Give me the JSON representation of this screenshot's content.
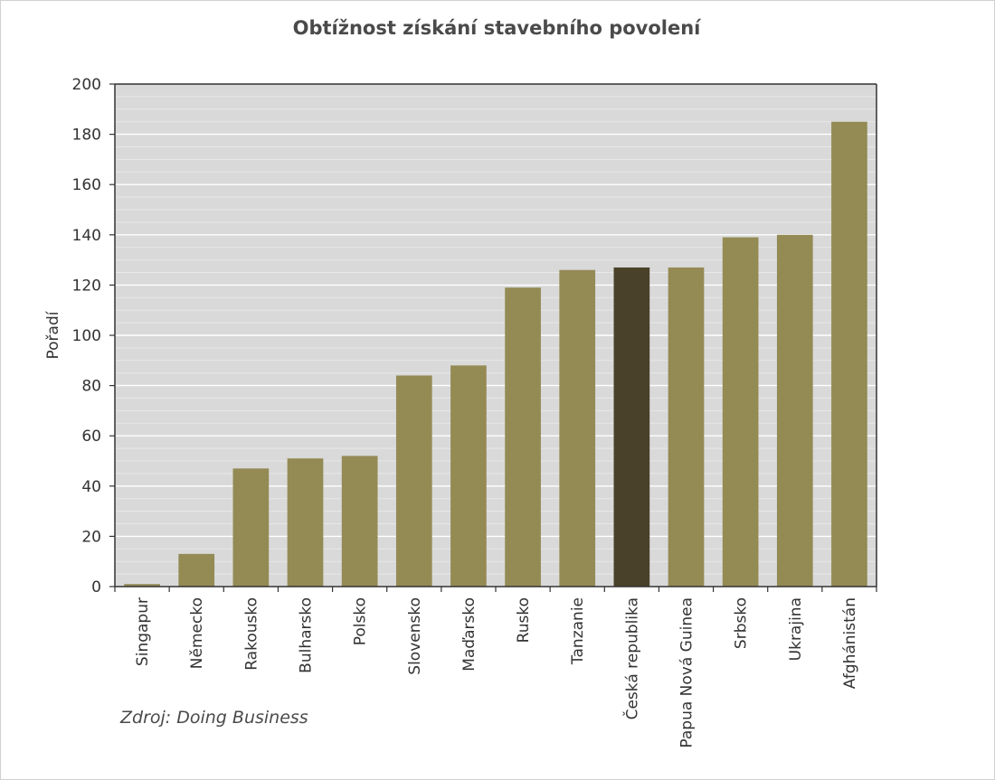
{
  "chart_data": {
    "type": "bar",
    "title": "Obtížnost získání stavebního povolení",
    "xlabel": "",
    "ylabel": "Pořadí",
    "ylim": [
      0,
      200
    ],
    "yticks": [
      0,
      20,
      40,
      60,
      80,
      100,
      120,
      140,
      160,
      180,
      200
    ],
    "minor_grid_step": 5,
    "grid": true,
    "categories": [
      "Singapur",
      "Německo",
      "Rakousko",
      "Bulharsko",
      "Polsko",
      "Slovensko",
      "Maďarsko",
      "Rusko",
      "Tanzanie",
      "Česká republika",
      "Papua Nová Guinea",
      "Srbsko",
      "Ukrajina",
      "Afghánistán"
    ],
    "values": [
      1,
      13,
      47,
      51,
      52,
      84,
      88,
      119,
      126,
      127,
      127,
      139,
      140,
      185
    ],
    "highlight_index": 9,
    "source": "Zdroj: Doing Business"
  },
  "colors": {
    "bar": "#948a54",
    "bar_highlight": "#494129",
    "plot_bg": "#d9d9d9",
    "grid_major": "#ffffff",
    "grid_minor": "#e8e8e8",
    "axis": "#333333"
  }
}
